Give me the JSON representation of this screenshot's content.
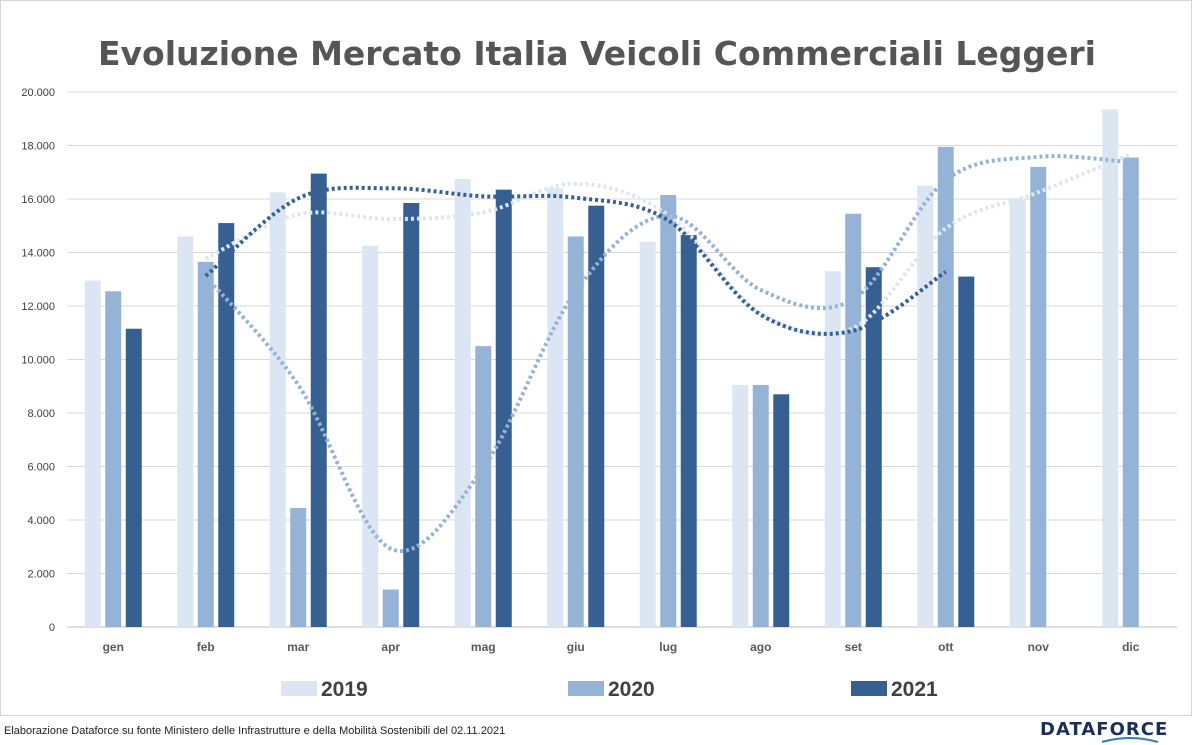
{
  "chart_data": {
    "type": "bar",
    "title": "Evoluzione Mercato Italia Veicoli Commerciali Leggeri",
    "categories": [
      "gen",
      "feb",
      "mar",
      "apr",
      "mag",
      "giu",
      "lug",
      "ago",
      "set",
      "ott",
      "nov",
      "dic"
    ],
    "y_ticks": [
      "0",
      "2.000",
      "4.000",
      "6.000",
      "8.000",
      "10.000",
      "12.000",
      "14.000",
      "16.000",
      "18.000",
      "20.000"
    ],
    "ylim": [
      0,
      20000
    ],
    "grid": true,
    "legend_position": "bottom",
    "series": [
      {
        "name": "2019",
        "color": "#dce6f2",
        "values": [
          12950,
          14600,
          16250,
          14250,
          16750,
          16400,
          14400,
          9050,
          13300,
          16500,
          16000,
          19350
        ],
        "trendline": "dotted moving average"
      },
      {
        "name": "2020",
        "color": "#95b3d7",
        "values": [
          12550,
          13650,
          4450,
          1400,
          10500,
          14600,
          16150,
          9050,
          15450,
          17950,
          17200,
          17550
        ],
        "trendline": "dotted moving average"
      },
      {
        "name": "2021",
        "color": "#366092",
        "values": [
          11150,
          15100,
          16950,
          15850,
          16350,
          15750,
          14650,
          8700,
          13450,
          13100,
          null,
          null
        ],
        "trendline": "dotted moving average"
      }
    ]
  },
  "footer": {
    "source": "Elaborazione Dataforce su fonte Ministero delle Infrastrutture e della Mobilità Sostenibili del 02.11.2021",
    "logo_text": "DATAFORCE",
    "logo_name": "dataforce-logo"
  }
}
